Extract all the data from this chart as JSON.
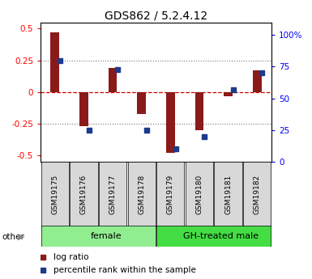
{
  "title": "GDS862 / 5.2.4.12",
  "samples": [
    "GSM19175",
    "GSM19176",
    "GSM19177",
    "GSM19178",
    "GSM19179",
    "GSM19180",
    "GSM19181",
    "GSM19182"
  ],
  "log_ratio": [
    0.47,
    -0.27,
    0.19,
    -0.17,
    -0.48,
    -0.3,
    -0.03,
    0.17
  ],
  "percentile_rank_pct": [
    75,
    20,
    68,
    20,
    5,
    15,
    52,
    65
  ],
  "groups": [
    {
      "label": "female",
      "start": 0,
      "end": 4,
      "color": "#90EE90"
    },
    {
      "label": "GH-treated male",
      "start": 4,
      "end": 8,
      "color": "#44DD44"
    }
  ],
  "ylim": [
    -0.55,
    0.55
  ],
  "yticks": [
    -0.5,
    -0.25,
    0,
    0.25,
    0.5
  ],
  "y2ticks": [
    0,
    25,
    50,
    75,
    100
  ],
  "bar_color_red": "#8B1A1A",
  "bar_color_blue": "#1E3A8A",
  "zero_line_color": "#cc0000",
  "dotted_line_color": "#777777",
  "sample_box_color": "#d8d8d8",
  "bar_width": 0.55,
  "blue_marker_size": 5
}
